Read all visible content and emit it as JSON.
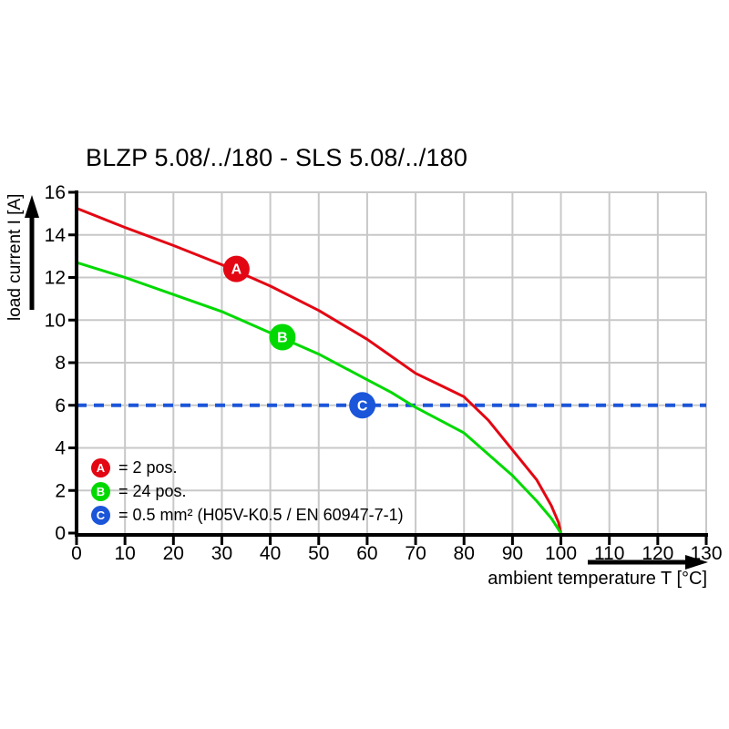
{
  "colors": {
    "curve_a_red": "#e30613",
    "curve_b_green": "#00d900",
    "ref_c_blue": "#1b55d9",
    "grid": "#c8c8c8",
    "axis": "#000000",
    "background": "#ffffff",
    "marker_text": "#ffffff"
  },
  "chart_data": {
    "type": "line",
    "title": "BLZP 5.08/../180 - SLS 5.08/../180",
    "xlabel": "ambient temperature T [°C]",
    "ylabel": "load current I [A]",
    "xlim": [
      0,
      130
    ],
    "ylim": [
      0,
      16
    ],
    "xticks": [
      0,
      10,
      20,
      30,
      40,
      50,
      60,
      70,
      80,
      90,
      100,
      110,
      120,
      130
    ],
    "yticks": [
      0,
      2,
      4,
      6,
      8,
      10,
      12,
      14,
      16
    ],
    "grid": true,
    "series": [
      {
        "id": "A",
        "name": "2 pos.",
        "color": "#e30613",
        "dash": false,
        "points": [
          [
            0,
            15.25
          ],
          [
            10,
            14.35
          ],
          [
            20,
            13.5
          ],
          [
            30,
            12.6
          ],
          [
            40,
            11.6
          ],
          [
            50,
            10.45
          ],
          [
            60,
            9.1
          ],
          [
            65,
            8.3
          ],
          [
            70,
            7.5
          ],
          [
            75,
            6.95
          ],
          [
            80,
            6.4
          ],
          [
            85,
            5.3
          ],
          [
            90,
            3.9
          ],
          [
            95,
            2.5
          ],
          [
            98,
            1.3
          ],
          [
            99.5,
            0.5
          ],
          [
            100,
            0
          ]
        ]
      },
      {
        "id": "B",
        "name": "24 pos.",
        "color": "#00d900",
        "dash": false,
        "points": [
          [
            0,
            12.7
          ],
          [
            10,
            12.0
          ],
          [
            20,
            11.2
          ],
          [
            30,
            10.4
          ],
          [
            40,
            9.4
          ],
          [
            50,
            8.4
          ],
          [
            60,
            7.2
          ],
          [
            65,
            6.6
          ],
          [
            70,
            5.9
          ],
          [
            75,
            5.3
          ],
          [
            80,
            4.7
          ],
          [
            85,
            3.7
          ],
          [
            90,
            2.7
          ],
          [
            95,
            1.5
          ],
          [
            98,
            0.7
          ],
          [
            100,
            0
          ]
        ]
      },
      {
        "id": "C",
        "name": "0.5 mm² (H05V-K0.5 / EN 60947-7-1)",
        "color": "#1b55d9",
        "dash": true,
        "points": [
          [
            0,
            6
          ],
          [
            130,
            6
          ]
        ]
      }
    ],
    "markers": [
      {
        "key": "A",
        "x": 33,
        "y": 12.4,
        "color": "#e30613"
      },
      {
        "key": "B",
        "x": 42.5,
        "y": 9.2,
        "color": "#00d900"
      },
      {
        "key": "C",
        "x": 59,
        "y": 6,
        "color": "#1b55d9"
      }
    ],
    "legend": {
      "position": "lower-left",
      "items": [
        {
          "key": "A",
          "text": "= 2 pos.",
          "color": "#e30613"
        },
        {
          "key": "B",
          "text": "= 24 pos.",
          "color": "#00d900"
        },
        {
          "key": "C",
          "text": "= 0.5 mm² (H05V-K0.5 / EN 60947-7-1)",
          "color": "#1b55d9"
        }
      ]
    }
  }
}
